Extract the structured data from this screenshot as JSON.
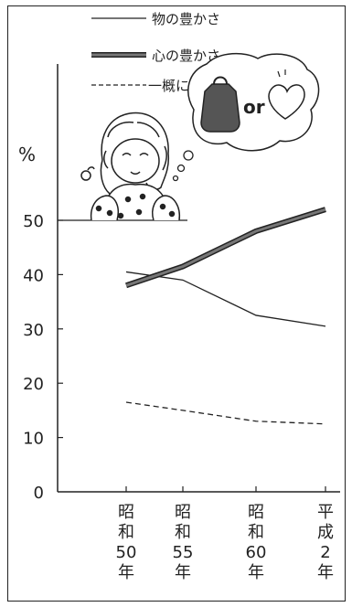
{
  "chart_data": {
    "type": "line",
    "ylabel": "%",
    "ylim": [
      0,
      55
    ],
    "yticks": [
      0,
      10,
      20,
      30,
      40,
      50
    ],
    "categories": [
      "昭和50年",
      "昭和55年",
      "昭和60年",
      "平成2年"
    ],
    "category_lines": [
      [
        "昭",
        "和",
        "50",
        "年"
      ],
      [
        "昭",
        "和",
        "55",
        "年"
      ],
      [
        "昭",
        "和",
        "60",
        "年"
      ],
      [
        "平",
        "成",
        "2",
        "年"
      ]
    ],
    "series": [
      {
        "name": "物の豊かさ",
        "values": [
          40.5,
          39,
          32.5,
          30.5
        ],
        "style": "thin"
      },
      {
        "name": "心の豊かさ",
        "values": [
          38,
          41.5,
          48,
          52
        ],
        "style": "thick"
      },
      {
        "name": "一概にいえない",
        "values": [
          16.5,
          15,
          13,
          12.5
        ],
        "style": "dashed"
      }
    ],
    "legend_position": "top",
    "grid": false,
    "illustration_text": "or"
  },
  "colors": {
    "ink": "#222222",
    "thick_fill": "#777777",
    "background": "#ffffff"
  }
}
